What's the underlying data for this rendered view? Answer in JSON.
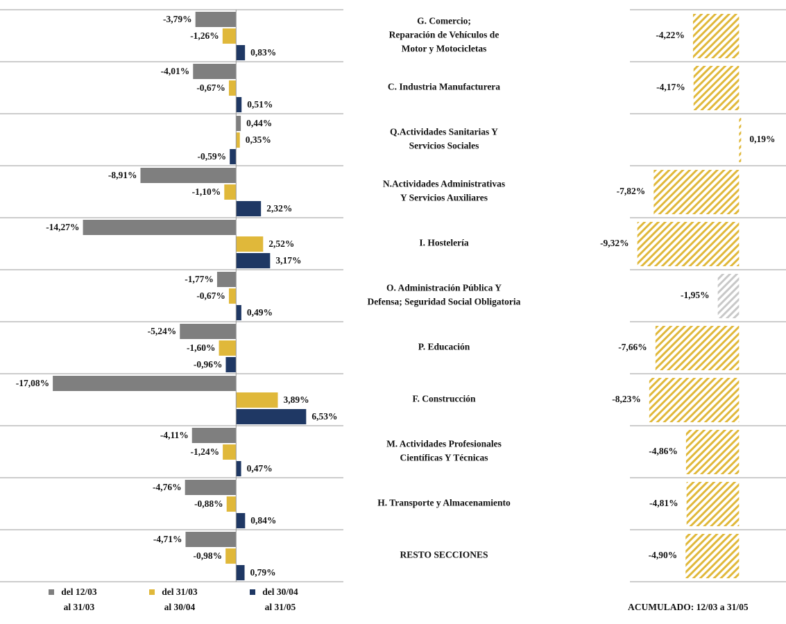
{
  "chart_data": [
    {
      "type": "hbar-grouped",
      "categories": [
        [
          "G. Comercio;",
          "Reparación de Vehículos de",
          "Motor y Motocicletas"
        ],
        [
          "C. Industria Manufacturera"
        ],
        [
          "Q.Actividades Sanitarias Y",
          "Servicios Sociales"
        ],
        [
          "N.Actividades Administrativas",
          "Y Servicios Auxiliares"
        ],
        [
          "I. Hostelería"
        ],
        [
          "O. Administración Pública Y",
          "Defensa; Seguridad Social Obligatoria"
        ],
        [
          "P. Educación"
        ],
        [
          "F. Construcción"
        ],
        [
          "M. Actividades Profesionales",
          "Científicas Y Técnicas"
        ],
        [
          "H. Transporte y Almacenamiento"
        ],
        [
          "RESTO SECCIONES"
        ]
      ],
      "xlim": [
        -22,
        10
      ],
      "series": [
        {
          "name": [
            "del 12/03",
            "al 31/03"
          ],
          "color": "#7f7f7f",
          "values": [
            -3.79,
            -4.01,
            0.44,
            -8.91,
            -14.27,
            -1.77,
            -5.24,
            -17.08,
            -4.11,
            -4.76,
            -4.71
          ],
          "value_labels": [
            "-3,79%",
            "-4,01%",
            "0,44%",
            "-8,91%",
            "-14,27%",
            "-1,77%",
            "-5,24%",
            "-17,08%",
            "-4,11%",
            "-4,76%",
            "-4,71%"
          ]
        },
        {
          "name": [
            "del 31/03",
            "al 30/04"
          ],
          "color": "#e0b83a",
          "values": [
            -1.26,
            -0.67,
            0.35,
            -1.1,
            2.52,
            -0.67,
            -1.6,
            3.89,
            -1.24,
            -0.88,
            -0.98
          ],
          "value_labels": [
            "-1,26%",
            "-0,67%",
            "0,35%",
            "-1,10%",
            "2,52%",
            "-0,67%",
            "-1,60%",
            "3,89%",
            "-1,24%",
            "-0,88%",
            "-0,98%"
          ]
        },
        {
          "name": [
            "del 30/04",
            "al 31/05"
          ],
          "color": "#1f3864",
          "values": [
            0.83,
            0.51,
            -0.59,
            2.32,
            3.17,
            0.49,
            -0.96,
            6.53,
            0.47,
            0.84,
            0.79
          ],
          "value_labels": [
            "0,83%",
            "0,51%",
            "-0,59%",
            "2,32%",
            "3,17%",
            "0,49%",
            "-0,96%",
            "6,53%",
            "0,47%",
            "0,84%",
            "0,79%"
          ]
        }
      ]
    },
    {
      "type": "hbar-hatched",
      "title": "ACUMULADO: 12/03 a 31/05",
      "xlim": [
        -10,
        4.3
      ],
      "values": [
        -4.22,
        -4.17,
        0.19,
        -7.82,
        -9.32,
        -1.95,
        -7.66,
        -8.23,
        -4.86,
        -4.81,
        -4.9
      ],
      "value_labels": [
        "-4,22%",
        "-4,17%",
        "0,19%",
        "-7,82%",
        "-9,32%",
        "-1,95%",
        "-7,66%",
        "-8,23%",
        "-4,86%",
        "-4,81%",
        "-4,90%"
      ],
      "colors": [
        "#e0b83a",
        "#e0b83a",
        "#e0b83a",
        "#e0b83a",
        "#e0b83a",
        "#c8c8c8",
        "#e0b83a",
        "#e0b83a",
        "#e0b83a",
        "#e0b83a",
        "#e0b83a"
      ]
    }
  ]
}
